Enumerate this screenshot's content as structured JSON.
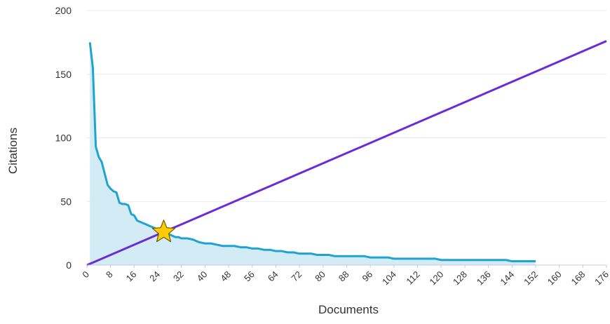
{
  "chart_data": {
    "type": "area",
    "xlabel": "Documents",
    "ylabel": "Citations",
    "xlim": [
      0,
      176
    ],
    "ylim": [
      0,
      200
    ],
    "x_ticks": [
      "0",
      "8",
      "16",
      "24",
      "32",
      "40",
      "48",
      "56",
      "64",
      "72",
      "80",
      "88",
      "96",
      "104",
      "112",
      "120",
      "128",
      "136",
      "144",
      "152",
      "160",
      "168",
      "176"
    ],
    "y_ticks": [
      "0",
      "50",
      "100",
      "150",
      "200"
    ],
    "grid": "horizontal",
    "h_index": {
      "x": 26,
      "y": 26
    },
    "series": [
      {
        "kind": "area",
        "x": [
          1,
          2,
          3,
          4,
          5,
          6,
          7,
          8,
          9,
          10,
          11,
          12,
          13,
          14,
          15,
          16,
          17,
          18,
          19,
          20,
          21,
          22,
          23,
          24,
          25,
          26,
          27,
          28,
          29,
          30,
          31,
          32,
          34,
          36,
          38,
          40,
          42,
          44,
          46,
          48,
          50,
          52,
          54,
          56,
          58,
          60,
          62,
          64,
          66,
          68,
          70,
          72,
          74,
          76,
          78,
          80,
          82,
          84,
          86,
          88,
          90,
          92,
          94,
          96,
          98,
          100,
          102,
          104,
          106,
          108,
          110,
          112,
          114,
          116,
          118,
          120,
          122,
          124,
          126,
          128,
          130,
          132,
          134,
          136,
          138,
          140,
          142,
          144,
          146,
          148,
          150,
          152
        ],
        "y": [
          175,
          155,
          93,
          85,
          81,
          72,
          63,
          60,
          58,
          57,
          49,
          48,
          48,
          47,
          40,
          39,
          35,
          34,
          33,
          32,
          31,
          30,
          29,
          28,
          27,
          26,
          25,
          24,
          23,
          22,
          22,
          21,
          21,
          20,
          18,
          17,
          17,
          16,
          15,
          15,
          15,
          14,
          14,
          13,
          13,
          12,
          12,
          11,
          11,
          10,
          10,
          9,
          9,
          9,
          8,
          8,
          8,
          7,
          7,
          7,
          7,
          7,
          7,
          6,
          6,
          6,
          6,
          5,
          5,
          5,
          5,
          5,
          5,
          5,
          5,
          4,
          4,
          4,
          4,
          4,
          4,
          4,
          4,
          4,
          4,
          4,
          4,
          3,
          3,
          3,
          3,
          3
        ]
      },
      {
        "kind": "line",
        "x": [
          0,
          176
        ],
        "y": [
          0,
          176
        ]
      }
    ],
    "colors": {
      "citations_line": "#1ea3d2",
      "citations_fill": "#d3ebf5",
      "diagonal": "#6c2bd9",
      "grid": "#e8e8e8",
      "axis": "#c8c8e0",
      "star_fill": "#ffcc00",
      "star_stroke": "#6b5a00"
    },
    "marker_icon": "star-icon"
  }
}
